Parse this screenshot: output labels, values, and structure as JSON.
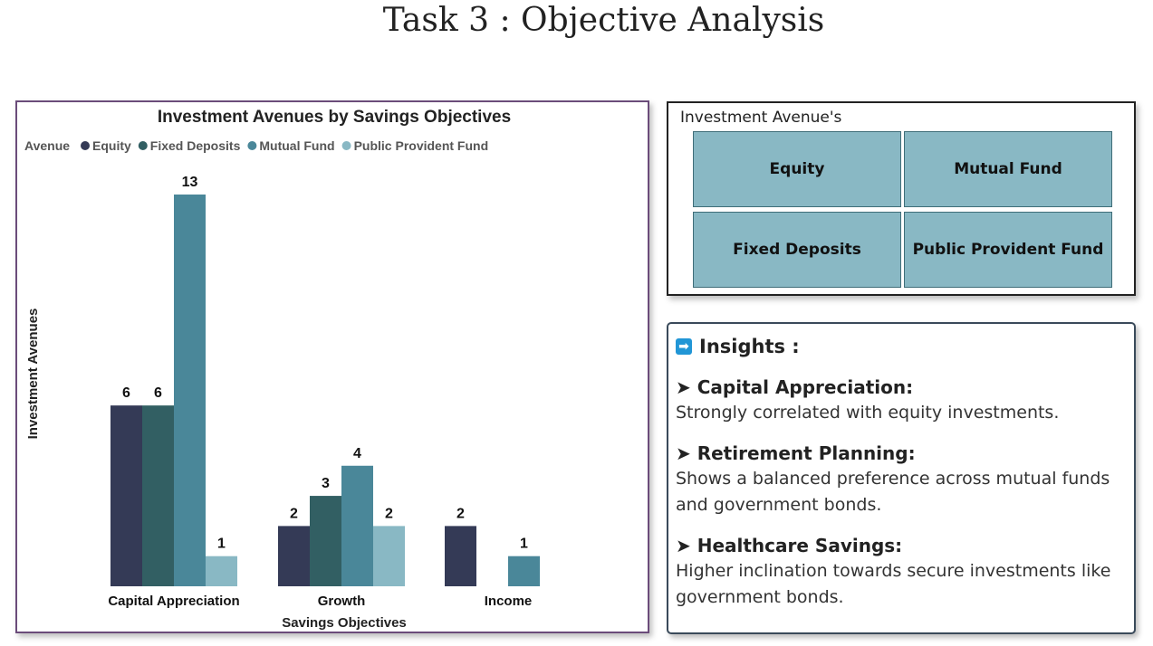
{
  "page_title": "Task 3 : Objective Analysis",
  "chart_data": {
    "type": "bar",
    "title": "Investment Avenues by Savings Objectives",
    "legend_title": "Avenue",
    "xlabel": "Savings Objectives",
    "ylabel": "Investment Avenues",
    "categories": [
      "Capital Appreciation",
      "Growth",
      "Income"
    ],
    "series": [
      {
        "name": "Equity",
        "color": "#343a56",
        "values": [
          6,
          2,
          2
        ]
      },
      {
        "name": "Fixed Deposits",
        "color": "#325f63",
        "values": [
          6,
          3,
          null
        ]
      },
      {
        "name": "Mutual Fund",
        "color": "#4a8799",
        "values": [
          13,
          4,
          1
        ]
      },
      {
        "name": "Public Provident Fund",
        "color": "#89b8c4",
        "values": [
          1,
          2,
          null
        ]
      }
    ],
    "ylim": [
      0,
      13
    ],
    "legend_position": "top-left",
    "grid": false
  },
  "avenues": {
    "title": "Investment Avenue's",
    "items": [
      "Equity",
      "Mutual Fund",
      "Fixed Deposits",
      "Public Provident Fund"
    ]
  },
  "insights": {
    "title": "Insights :",
    "items": [
      {
        "title": "➤ Capital Appreciation:",
        "text": "Strongly correlated with equity investments."
      },
      {
        "title": "➤ Retirement Planning:",
        "text": "Shows a balanced preference across mutual funds and government bonds."
      },
      {
        "title": "➤ Healthcare Savings:",
        "text": "Higher inclination towards secure investments like government bonds."
      }
    ]
  }
}
